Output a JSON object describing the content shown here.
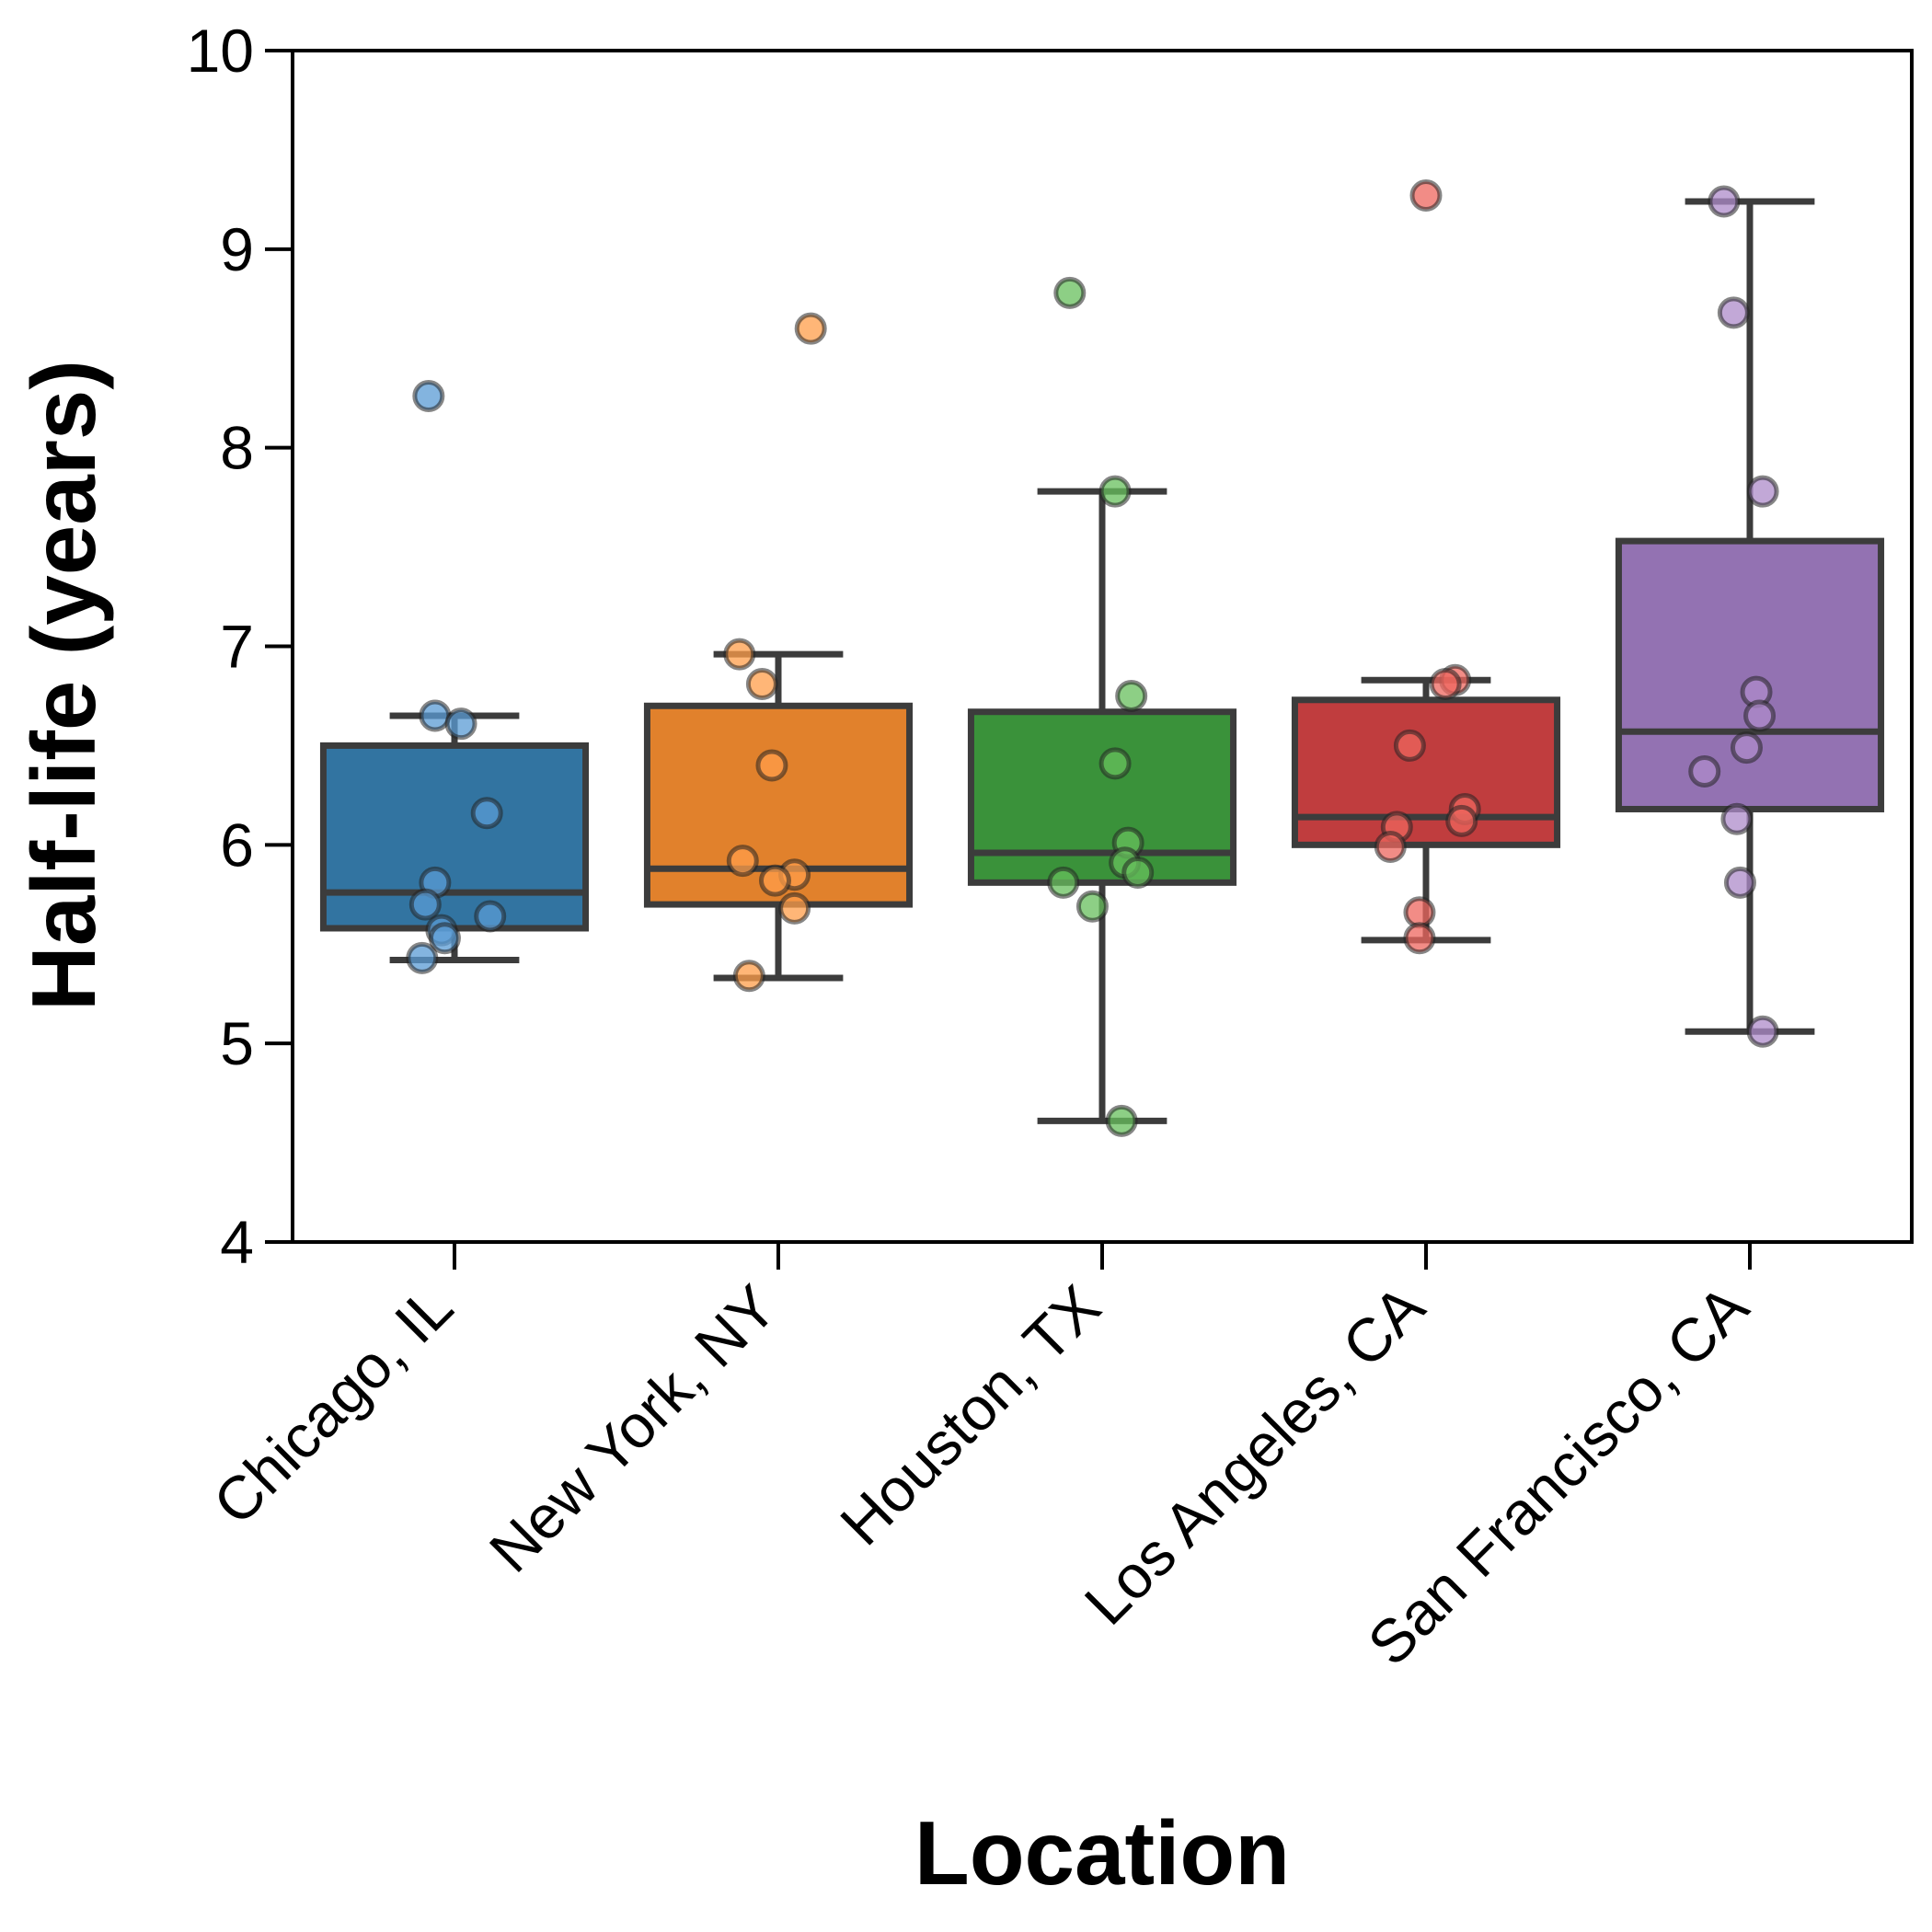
{
  "chart_data": {
    "type": "box",
    "title": "",
    "xlabel": "Location",
    "ylabel": "Half-life (years)",
    "ylim": [
      4,
      10
    ],
    "yticks": [
      4,
      5,
      6,
      7,
      8,
      9,
      10
    ],
    "grid": false,
    "legend": "none",
    "categories": [
      "Chicago, IL",
      "New York, NY",
      "Houston, TX",
      "Los Angeles, CA",
      "San Francisco, CA"
    ],
    "colors": [
      "#3274a1",
      "#e1812c",
      "#3a923a",
      "#c03d3e",
      "#9372b2"
    ],
    "point_colors": [
      "#5a9bd4",
      "#ff9e4a",
      "#67bf5c",
      "#ed665d",
      "#ad8bc9"
    ],
    "edge_color": "#3c3c3c",
    "boxes": [
      {
        "q1": 5.58,
        "median": 5.76,
        "q3": 6.5,
        "whisker_low": 5.42,
        "whisker_high": 6.65
      },
      {
        "q1": 5.7,
        "median": 5.88,
        "q3": 6.7,
        "whisker_low": 5.33,
        "whisker_high": 6.96
      },
      {
        "q1": 5.81,
        "median": 5.96,
        "q3": 6.67,
        "whisker_low": 4.61,
        "whisker_high": 7.78
      },
      {
        "q1": 6.0,
        "median": 6.14,
        "q3": 6.73,
        "whisker_low": 5.52,
        "whisker_high": 6.83
      },
      {
        "q1": 6.18,
        "median": 6.57,
        "q3": 7.53,
        "whisker_low": 5.06,
        "whisker_high": 9.24
      }
    ],
    "points": [
      [
        {
          "offset": -0.08,
          "y": 8.26
        },
        {
          "offset": -0.06,
          "y": 6.65
        },
        {
          "offset": 0.02,
          "y": 6.61
        },
        {
          "offset": 0.1,
          "y": 6.16
        },
        {
          "offset": -0.06,
          "y": 5.81
        },
        {
          "offset": -0.09,
          "y": 5.7
        },
        {
          "offset": 0.11,
          "y": 5.64
        },
        {
          "offset": -0.04,
          "y": 5.57
        },
        {
          "offset": -0.03,
          "y": 5.53
        },
        {
          "offset": -0.1,
          "y": 5.43
        }
      ],
      [
        {
          "offset": 0.1,
          "y": 8.6
        },
        {
          "offset": -0.12,
          "y": 6.96
        },
        {
          "offset": -0.05,
          "y": 6.81
        },
        {
          "offset": -0.02,
          "y": 6.4
        },
        {
          "offset": -0.11,
          "y": 5.92
        },
        {
          "offset": 0.05,
          "y": 5.85
        },
        {
          "offset": -0.01,
          "y": 5.82
        },
        {
          "offset": 0.05,
          "y": 5.68
        },
        {
          "offset": -0.09,
          "y": 5.34
        }
      ],
      [
        {
          "offset": -0.1,
          "y": 8.78
        },
        {
          "offset": 0.04,
          "y": 7.78
        },
        {
          "offset": 0.09,
          "y": 6.75
        },
        {
          "offset": 0.04,
          "y": 6.41
        },
        {
          "offset": 0.08,
          "y": 6.01
        },
        {
          "offset": 0.07,
          "y": 5.91
        },
        {
          "offset": 0.11,
          "y": 5.86
        },
        {
          "offset": -0.12,
          "y": 5.81
        },
        {
          "offset": -0.03,
          "y": 5.69
        },
        {
          "offset": 0.06,
          "y": 4.61
        }
      ],
      [
        {
          "offset": 0.0,
          "y": 9.27
        },
        {
          "offset": 0.09,
          "y": 6.83
        },
        {
          "offset": 0.06,
          "y": 6.81
        },
        {
          "offset": -0.05,
          "y": 6.5
        },
        {
          "offset": 0.12,
          "y": 6.18
        },
        {
          "offset": 0.11,
          "y": 6.12
        },
        {
          "offset": -0.09,
          "y": 6.09
        },
        {
          "offset": -0.11,
          "y": 5.99
        },
        {
          "offset": -0.02,
          "y": 5.66
        },
        {
          "offset": -0.02,
          "y": 5.53
        }
      ],
      [
        {
          "offset": -0.08,
          "y": 9.24
        },
        {
          "offset": -0.05,
          "y": 8.68
        },
        {
          "offset": 0.04,
          "y": 7.78
        },
        {
          "offset": 0.02,
          "y": 6.77
        },
        {
          "offset": 0.03,
          "y": 6.65
        },
        {
          "offset": -0.01,
          "y": 6.49
        },
        {
          "offset": -0.14,
          "y": 6.37
        },
        {
          "offset": -0.04,
          "y": 6.13
        },
        {
          "offset": -0.03,
          "y": 5.81
        },
        {
          "offset": 0.04,
          "y": 5.06
        }
      ]
    ]
  }
}
